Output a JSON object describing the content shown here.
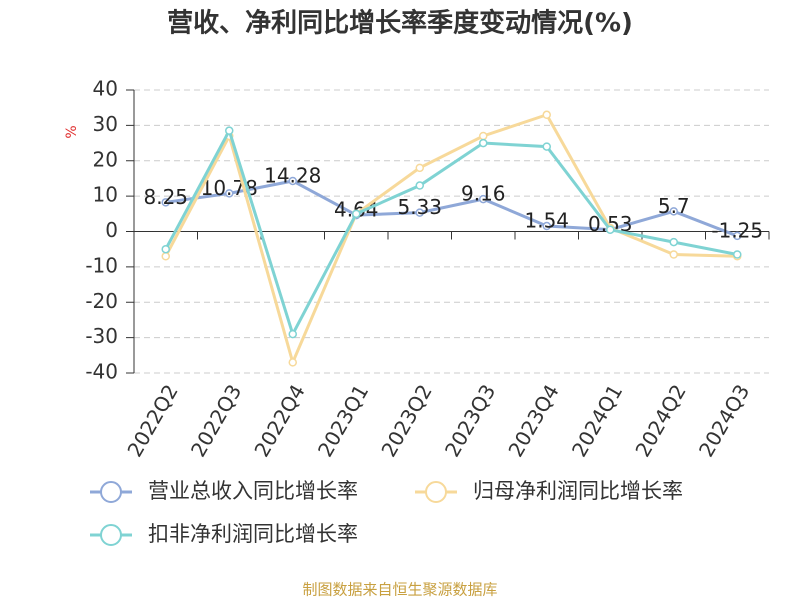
{
  "chart_data": {
    "type": "line",
    "title": "营收、净利同比增长率季度变动情况(%)",
    "y_label": "%",
    "source": "制图数据来自恒生聚源数据库",
    "categories": [
      "2022Q2",
      "2022Q3",
      "2022Q4",
      "2023Q1",
      "2023Q2",
      "2023Q3",
      "2023Q4",
      "2024Q1",
      "2024Q2",
      "2024Q3"
    ],
    "series": [
      {
        "name": "营业总收入同比增长率",
        "color": "#8fa8d8",
        "values": [
          8.25,
          10.78,
          14.28,
          4.64,
          5.33,
          9.16,
          1.54,
          0.53,
          5.7,
          -1.25
        ],
        "show_labels": true
      },
      {
        "name": "归母净利润同比增长率",
        "color": "#f7d99a",
        "values": [
          -7,
          27,
          -37,
          5,
          18,
          27,
          33,
          1,
          -6.5,
          -7
        ],
        "show_labels": false
      },
      {
        "name": "扣非净利润同比增长率",
        "color": "#7fd3d3",
        "values": [
          -5,
          28.5,
          -29,
          5,
          13,
          25,
          24,
          0.5,
          -3,
          -6.5
        ],
        "show_labels": false
      }
    ],
    "ylim": [
      -40,
      40
    ],
    "yticks": [
      -40,
      -30,
      -20,
      -10,
      0,
      10,
      20,
      30,
      40
    ],
    "grid": true
  }
}
